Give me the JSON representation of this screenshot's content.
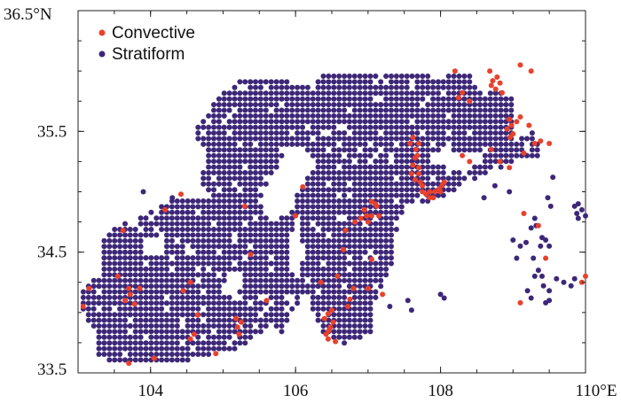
{
  "chart_data": {
    "type": "scatter",
    "title": "",
    "xlabel": "",
    "ylabel": "",
    "xlim": [
      103,
      110
    ],
    "ylim": [
      33.5,
      36.5
    ],
    "x_ticks": [
      {
        "value": 104,
        "label": "104"
      },
      {
        "value": 106,
        "label": "106"
      },
      {
        "value": 108,
        "label": "108"
      },
      {
        "value": 110,
        "label": "110°E"
      }
    ],
    "y_ticks": [
      {
        "value": 33.5,
        "label": "33.5"
      },
      {
        "value": 34.5,
        "label": "34.5"
      },
      {
        "value": 35.5,
        "label": "35.5"
      },
      {
        "value": 36.5,
        "label": "36.5°N"
      }
    ],
    "grid": false,
    "legend_position": "top-left",
    "series": [
      {
        "name": "Convective",
        "color": "#e8412c",
        "points": [
          [
            103.15,
            34.2
          ],
          [
            103.07,
            34.05
          ],
          [
            103.65,
            34.1
          ],
          [
            103.7,
            34.2
          ],
          [
            103.72,
            34.15
          ],
          [
            103.78,
            34.07
          ],
          [
            103.85,
            34.2
          ],
          [
            103.62,
            34.68
          ],
          [
            103.55,
            34.3
          ],
          [
            104.42,
            34.98
          ],
          [
            104.55,
            34.25
          ],
          [
            104.45,
            34.18
          ],
          [
            104.65,
            33.98
          ],
          [
            104.55,
            33.78
          ],
          [
            104.6,
            33.82
          ],
          [
            103.7,
            33.58
          ],
          [
            104.05,
            33.62
          ],
          [
            104.9,
            33.66
          ],
          [
            105.2,
            33.88
          ],
          [
            105.22,
            33.82
          ],
          [
            105.25,
            33.92
          ],
          [
            105.18,
            33.95
          ],
          [
            105.3,
            34.88
          ],
          [
            105.38,
            34.48
          ],
          [
            106.0,
            34.8
          ],
          [
            106.1,
            35.04
          ],
          [
            106.45,
            33.78
          ],
          [
            106.42,
            33.82
          ],
          [
            106.48,
            33.88
          ],
          [
            106.52,
            33.92
          ],
          [
            106.4,
            33.95
          ],
          [
            106.45,
            33.99
          ],
          [
            106.5,
            34.02
          ],
          [
            106.46,
            33.85
          ],
          [
            106.55,
            33.76
          ],
          [
            106.58,
            34.3
          ],
          [
            106.8,
            34.2
          ],
          [
            106.72,
            34.05
          ],
          [
            106.75,
            34.11
          ],
          [
            107.05,
            34.44
          ],
          [
            107.2,
            34.15
          ],
          [
            106.66,
            34.52
          ],
          [
            106.69,
            34.68
          ],
          [
            106.82,
            34.75
          ],
          [
            106.9,
            34.78
          ],
          [
            106.98,
            34.8
          ],
          [
            106.95,
            34.85
          ],
          [
            107.0,
            34.75
          ],
          [
            107.05,
            34.92
          ],
          [
            107.1,
            34.9
          ],
          [
            107.12,
            34.88
          ],
          [
            107.15,
            34.8
          ],
          [
            107.05,
            34.8
          ],
          [
            107.65,
            35.28
          ],
          [
            107.68,
            35.3
          ],
          [
            107.62,
            35.22
          ],
          [
            107.7,
            35.15
          ],
          [
            107.72,
            35.08
          ],
          [
            107.75,
            35.0
          ],
          [
            107.8,
            34.98
          ],
          [
            107.85,
            35.0
          ],
          [
            107.9,
            34.95
          ],
          [
            107.98,
            35.02
          ],
          [
            108.02,
            35.05
          ],
          [
            107.66,
            35.35
          ],
          [
            107.58,
            35.4
          ],
          [
            107.62,
            35.45
          ],
          [
            107.7,
            35.4
          ],
          [
            107.65,
            35.1
          ],
          [
            107.7,
            35.2
          ],
          [
            107.75,
            35.05
          ],
          [
            108.0,
            35.0
          ],
          [
            107.92,
            35.0
          ],
          [
            108.05,
            35.08
          ],
          [
            107.85,
            34.95
          ],
          [
            107.6,
            35.15
          ],
          [
            108.3,
            35.82
          ],
          [
            108.25,
            35.78
          ],
          [
            108.4,
            35.75
          ],
          [
            108.2,
            36.0
          ],
          [
            108.72,
            35.92
          ],
          [
            108.78,
            35.95
          ],
          [
            108.82,
            35.9
          ],
          [
            108.76,
            35.85
          ],
          [
            108.7,
            35.88
          ],
          [
            108.68,
            36.0
          ],
          [
            108.85,
            35.82
          ],
          [
            108.95,
            35.6
          ],
          [
            108.98,
            35.55
          ],
          [
            108.92,
            35.52
          ],
          [
            109.05,
            35.58
          ],
          [
            109.1,
            35.62
          ],
          [
            109.0,
            35.48
          ],
          [
            108.96,
            35.45
          ],
          [
            109.3,
            35.4
          ],
          [
            109.22,
            35.55
          ],
          [
            109.38,
            35.42
          ],
          [
            109.1,
            36.05
          ],
          [
            109.25,
            36.0
          ],
          [
            108.82,
            35.25
          ],
          [
            108.95,
            35.2
          ],
          [
            108.3,
            35.3
          ],
          [
            108.4,
            35.25
          ],
          [
            108.7,
            35.35
          ],
          [
            109.5,
            35.4
          ],
          [
            109.15,
            35.32
          ],
          [
            109.15,
            34.82
          ],
          [
            109.35,
            34.72
          ],
          [
            109.45,
            34.45
          ],
          [
            110.0,
            34.3
          ],
          [
            109.95,
            34.25
          ],
          [
            109.1,
            34.08
          ],
          [
            107.0,
            34.2
          ],
          [
            106.35,
            34.25
          ],
          [
            105.6,
            34.1
          ],
          [
            104.2,
            34.85
          ]
        ]
      },
      {
        "name": "Stratiform",
        "color": "#3d2778",
        "polygons": [
          [
            [
              103.05,
              34.05
            ],
            [
              103.08,
              34.25
            ],
            [
              103.3,
              34.28
            ],
            [
              103.3,
              34.6
            ],
            [
              103.55,
              34.75
            ],
            [
              103.85,
              34.78
            ],
            [
              104.2,
              34.9
            ],
            [
              104.6,
              35.0
            ],
            [
              104.8,
              35.28
            ],
            [
              104.6,
              35.5
            ],
            [
              104.9,
              35.75
            ],
            [
              105.15,
              35.9
            ],
            [
              105.5,
              35.95
            ],
            [
              106.2,
              35.88
            ],
            [
              106.4,
              36.0
            ],
            [
              107.3,
              36.0
            ],
            [
              107.8,
              35.96
            ],
            [
              108.0,
              35.95
            ],
            [
              108.4,
              36.0
            ],
            [
              108.55,
              35.85
            ],
            [
              109.0,
              35.8
            ],
            [
              109.0,
              35.4
            ],
            [
              109.3,
              35.5
            ],
            [
              109.4,
              35.28
            ],
            [
              109.0,
              35.25
            ],
            [
              108.55,
              35.12
            ],
            [
              108.15,
              35.0
            ],
            [
              107.8,
              34.9
            ],
            [
              107.55,
              34.9
            ],
            [
              107.4,
              34.7
            ],
            [
              107.35,
              34.4
            ],
            [
              107.1,
              34.1
            ],
            [
              107.05,
              33.82
            ],
            [
              106.7,
              33.74
            ],
            [
              106.35,
              33.82
            ],
            [
              106.15,
              34.2
            ],
            [
              105.95,
              34.0
            ],
            [
              105.8,
              33.8
            ],
            [
              105.65,
              33.9
            ],
            [
              105.3,
              33.72
            ],
            [
              104.5,
              33.6
            ],
            [
              103.6,
              33.58
            ],
            [
              103.3,
              33.62
            ],
            [
              103.2,
              33.85
            ]
          ]
        ],
        "holes": [
          [
            [
              105.65,
              35.1
            ],
            [
              105.5,
              34.92
            ],
            [
              105.65,
              34.75
            ],
            [
              105.95,
              34.85
            ],
            [
              106.05,
              35.02
            ],
            [
              106.3,
              35.22
            ],
            [
              106.15,
              35.35
            ],
            [
              105.9,
              35.4
            ],
            [
              105.75,
              35.22
            ]
          ],
          [
            [
              104.5,
              35.1
            ],
            [
              104.8,
              35.05
            ],
            [
              104.72,
              34.92
            ],
            [
              104.5,
              34.95
            ]
          ],
          [
            [
              103.9,
              34.6
            ],
            [
              104.2,
              34.6
            ],
            [
              104.18,
              34.48
            ],
            [
              103.95,
              34.45
            ]
          ],
          [
            [
              105.05,
              34.35
            ],
            [
              105.3,
              34.35
            ],
            [
              105.2,
              34.1
            ],
            [
              104.98,
              34.15
            ]
          ],
          [
            [
              105.9,
              34.55
            ],
            [
              106.05,
              34.85
            ],
            [
              106.12,
              34.45
            ],
            [
              105.98,
              34.2
            ]
          ],
          [
            [
              107.9,
              35.35
            ],
            [
              108.6,
              35.3
            ],
            [
              108.35,
              35.15
            ],
            [
              107.85,
              35.25
            ]
          ]
        ],
        "extra_points": [
          [
            109.85,
            34.88
          ],
          [
            109.88,
            34.82
          ],
          [
            109.95,
            34.85
          ],
          [
            110.0,
            34.8
          ],
          [
            109.9,
            34.78
          ],
          [
            109.52,
            34.88
          ],
          [
            109.48,
            34.95
          ],
          [
            109.3,
            34.78
          ],
          [
            109.32,
            34.72
          ],
          [
            109.25,
            34.7
          ],
          [
            109.4,
            34.62
          ],
          [
            109.45,
            34.6
          ],
          [
            109.5,
            34.55
          ],
          [
            109.38,
            34.55
          ],
          [
            109.18,
            34.58
          ],
          [
            109.28,
            34.45
          ],
          [
            109.35,
            34.35
          ],
          [
            109.4,
            34.3
          ],
          [
            109.3,
            34.3
          ],
          [
            109.42,
            34.22
          ],
          [
            109.5,
            34.18
          ],
          [
            109.2,
            34.18
          ],
          [
            109.25,
            34.12
          ],
          [
            109.45,
            34.08
          ],
          [
            109.5,
            34.1
          ],
          [
            109.6,
            34.28
          ],
          [
            109.7,
            34.25
          ],
          [
            109.8,
            34.22
          ],
          [
            109.85,
            34.28
          ],
          [
            109.0,
            34.6
          ],
          [
            109.1,
            34.55
          ],
          [
            109.05,
            34.45
          ],
          [
            107.55,
            34.1
          ],
          [
            107.6,
            34.02
          ],
          [
            108.0,
            34.15
          ],
          [
            108.05,
            34.12
          ],
          [
            107.3,
            34.05
          ],
          [
            103.9,
            35.0
          ],
          [
            104.3,
            34.95
          ],
          [
            108.6,
            34.95
          ],
          [
            108.75,
            35.05
          ],
          [
            108.95,
            35.0
          ],
          [
            109.55,
            35.12
          ],
          [
            109.9,
            34.9
          ]
        ]
      }
    ]
  }
}
